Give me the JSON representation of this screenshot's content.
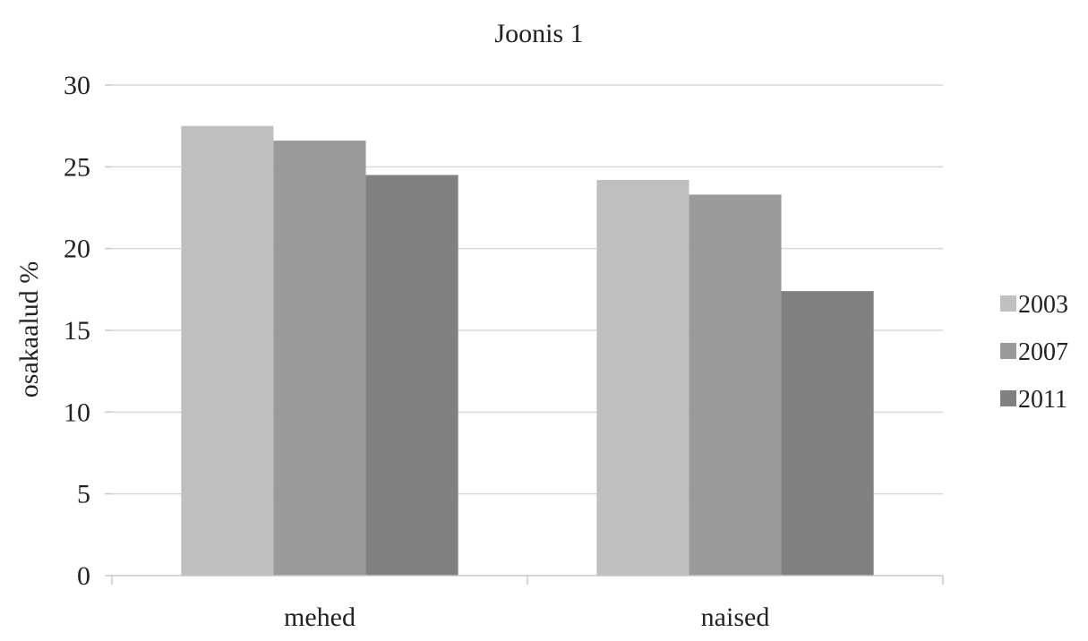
{
  "chart_data": {
    "type": "bar",
    "title": "Joonis 1",
    "xlabel": "",
    "ylabel": "osakaalud %",
    "categories": [
      "mehed",
      "naised"
    ],
    "series": [
      {
        "name": "2003",
        "values": [
          27.5,
          24.2
        ],
        "color": "#bfbfbf"
      },
      {
        "name": "2007",
        "values": [
          26.6,
          23.3
        ],
        "color": "#9a9a9a"
      },
      {
        "name": "2011",
        "values": [
          24.5,
          17.4
        ],
        "color": "#808080"
      }
    ],
    "ylim": [
      0,
      30
    ],
    "yticks": [
      0,
      5,
      10,
      15,
      20,
      25,
      30
    ],
    "grid": true,
    "legend_position": "right",
    "colors": {
      "gridline": "#d9d9d9",
      "axis": "#c8c8c8",
      "text": "#222222"
    }
  }
}
